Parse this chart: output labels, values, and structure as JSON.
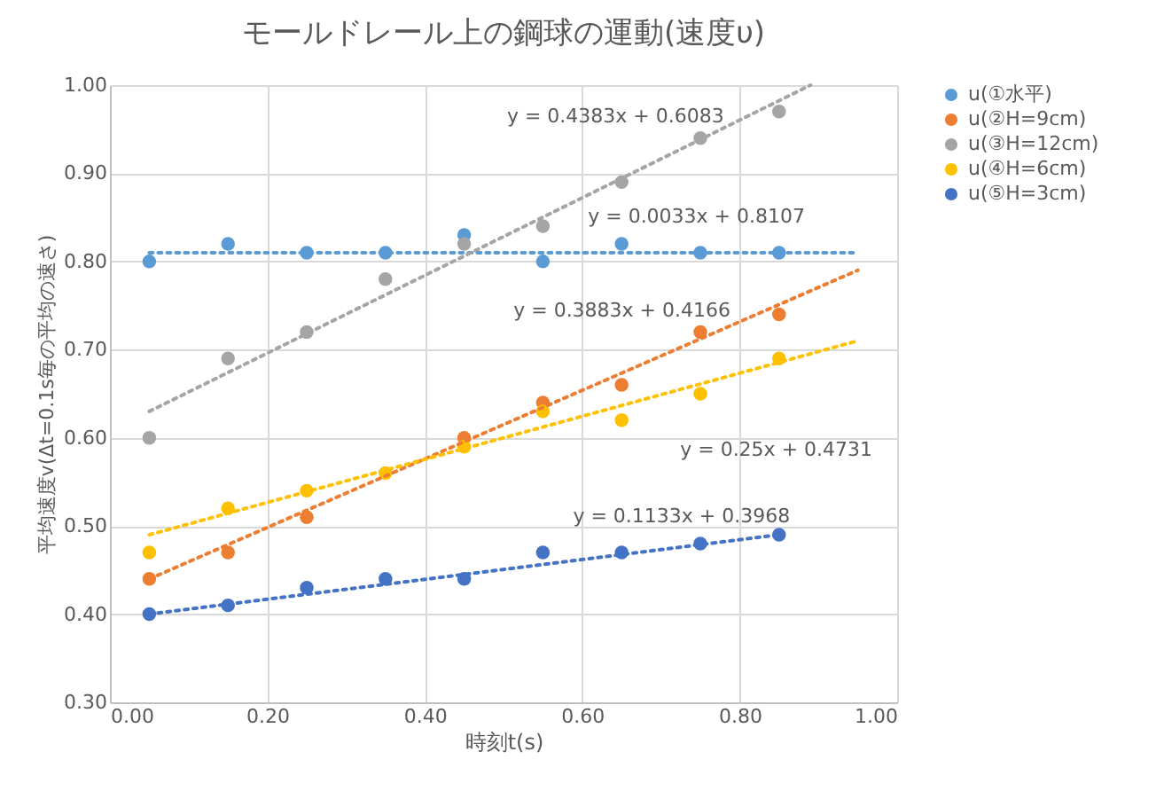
{
  "chart_data": {
    "type": "scatter",
    "title": "モールドレール上の鋼球の運動(速度υ)",
    "xlabel": "時刻t(s)",
    "ylabel": "平均速度v(Δt=0.1s毎の平均の速さ)",
    "x": [
      0.05,
      0.15,
      0.25,
      0.35,
      0.45,
      0.55,
      0.65,
      0.75,
      0.85
    ],
    "series": [
      {
        "name": "u(①水平)",
        "color": "#5b9bd5",
        "values": [
          0.8,
          0.82,
          0.81,
          0.81,
          0.83,
          0.8,
          0.82,
          0.81,
          0.81
        ]
      },
      {
        "name": "u(②H=9cm)",
        "color": "#ed7d31",
        "values": [
          0.44,
          0.47,
          0.51,
          null,
          0.6,
          0.64,
          0.66,
          0.72,
          0.74
        ]
      },
      {
        "name": "u(③H=12cm)",
        "color": "#a5a5a5",
        "values": [
          0.6,
          0.69,
          0.72,
          0.78,
          0.82,
          0.84,
          0.89,
          0.94,
          0.97
        ]
      },
      {
        "name": "u(④H=6cm)",
        "color": "#ffc000",
        "values": [
          0.47,
          0.52,
          0.54,
          0.56,
          0.59,
          0.63,
          0.62,
          0.65,
          0.69
        ]
      },
      {
        "name": "u(⑤H=3cm)",
        "color": "#4472c4",
        "values": [
          0.4,
          0.41,
          0.43,
          0.44,
          0.44,
          0.47,
          0.47,
          0.48,
          0.49
        ]
      },
      {
        "type": "line",
        "color": "#5b9bd5",
        "line_style": "dotted",
        "marker": "none",
        "x": [
          0.05,
          0.95
        ],
        "values": [
          0.81,
          0.81
        ]
      },
      {
        "type": "line",
        "color": "#ed7d31",
        "line_style": "dotted",
        "marker": "none",
        "x": [
          0.05,
          0.95
        ],
        "values": [
          0.44,
          0.79
        ]
      },
      {
        "type": "line",
        "color": "#a5a5a5",
        "line_style": "dotted",
        "marker": "none",
        "x": [
          0.05,
          0.89
        ],
        "values": [
          0.63,
          1.0
        ]
      },
      {
        "type": "line",
        "color": "#ffc000",
        "line_style": "dotted",
        "marker": "none",
        "x": [
          0.05,
          0.95
        ],
        "values": [
          0.49,
          0.71
        ]
      },
      {
        "type": "line",
        "color": "#4472c4",
        "line_style": "dotted",
        "marker": "none",
        "x": [
          0.05,
          0.85
        ],
        "values": [
          0.4,
          0.49
        ]
      }
    ],
    "annotations": [
      "y = 0.0033x + 0.8107",
      "y = 0.3883x + 0.4166",
      "y = 0.4383x + 0.6083",
      "y = 0.25x + 0.4731",
      "y = 0.1133x + 0.3968"
    ],
    "xlim": [
      0,
      1
    ],
    "xticks": [
      {
        "value": 0,
        "label": "0.00"
      },
      {
        "value": 0.2,
        "label": "0.20"
      },
      {
        "value": 0.4,
        "label": "0.40"
      },
      {
        "value": 0.6,
        "label": "0.60"
      },
      {
        "value": 0.8,
        "label": "0.80"
      },
      {
        "value": 1,
        "label": "1.00"
      }
    ],
    "ylim": [
      0.3,
      1
    ],
    "yticks": [
      {
        "value": 0.3,
        "label": "0.30"
      },
      {
        "value": 0.4,
        "label": "0.40"
      },
      {
        "value": 0.5,
        "label": "0.50"
      },
      {
        "value": 0.6,
        "label": "0.60"
      },
      {
        "value": 0.7,
        "label": "0.70"
      },
      {
        "value": 0.8,
        "label": "0.80"
      },
      {
        "value": 0.9,
        "label": "0.90"
      },
      {
        "value": 1,
        "label": "1.00"
      }
    ],
    "grid": true,
    "legend": "right",
    "marker": "circle"
  }
}
